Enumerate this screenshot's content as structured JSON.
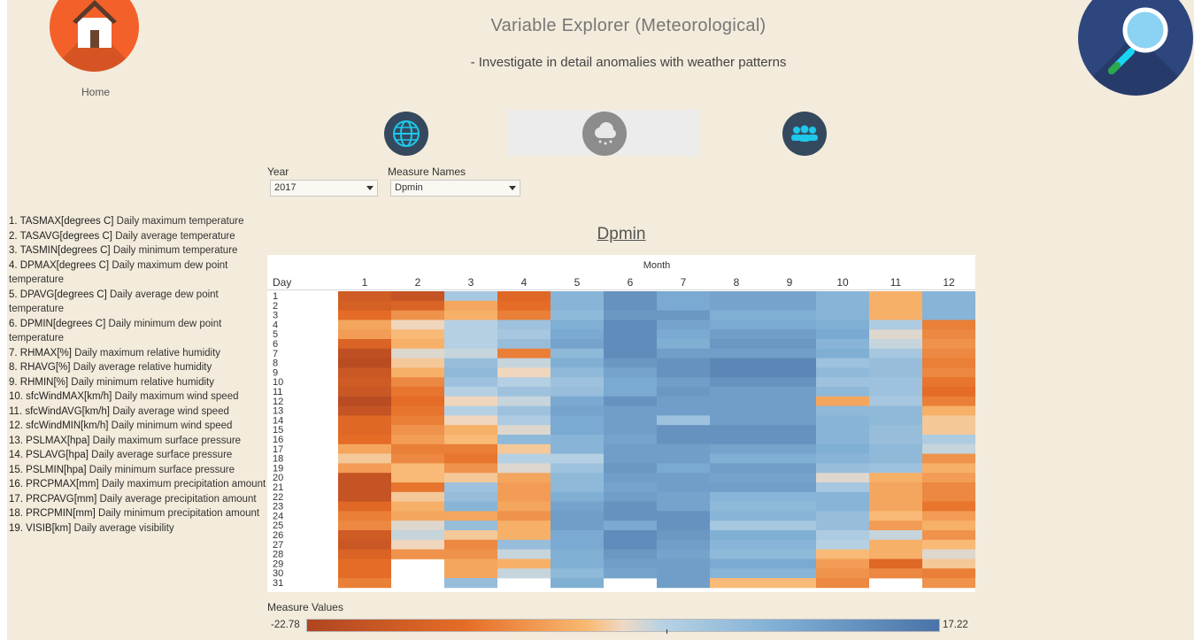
{
  "header": {
    "title": "Variable Explorer (Meteorological)",
    "subtitle": "- Investigate in detail anomalies with weather patterns",
    "home_label": "Home"
  },
  "icons": {
    "home": "home-icon",
    "search": "magnifier-icon",
    "nav": [
      "globe-icon",
      "rain-cloud-icon",
      "people-icon"
    ]
  },
  "colors": {
    "background": "#f3ebdb",
    "home_button": "#f4602a",
    "search_button": "#2e467e",
    "nav_dark": "#34495e",
    "nav_active": "#8c8c8c",
    "accent_cyan": "#19d6f0"
  },
  "filters": {
    "year": {
      "label": "Year",
      "value": "2017"
    },
    "measure": {
      "label": "Measure Names",
      "value": "Dpmin"
    }
  },
  "variables": [
    {
      "code": "1. TASMAX[degrees C]",
      "desc": "Daily maximum temperature"
    },
    {
      "code": "2. TASAVG[degrees C]",
      "desc": "Daily average temperature"
    },
    {
      "code": "3. TASMIN[degrees C]",
      "desc": "Daily minimum temperature"
    },
    {
      "code": "4. DPMAX[degrees C]",
      "desc": "Daily maximum dew point temperature"
    },
    {
      "code": "5. DPAVG[degrees C]",
      "desc": "Daily average dew point temperature"
    },
    {
      "code": "6. DPMIN[degrees C]",
      "desc": "Daily minimum dew point temperature"
    },
    {
      "code": "7. RHMAX[%]",
      "desc": "Daily maximum relative humidity"
    },
    {
      "code": "8. RHAVG[%]",
      "desc": "Daily average relative humidity"
    },
    {
      "code": "9. RHMIN[%]",
      "desc": "Daily minimum relative humidity"
    },
    {
      "code": "10. sfcWindMAX[km/h]",
      "desc": "Daily maximum wind speed"
    },
    {
      "code": "11. sfcWindAVG[km/h]",
      "desc": "Daily average wind speed"
    },
    {
      "code": "12. sfcWindMIN[km/h]",
      "desc": "Daily minimum wind speed"
    },
    {
      "code": "13. PSLMAX[hpa]",
      "desc": "Daily maximum surface pressure"
    },
    {
      "code": "14. PSLAVG[hpa]",
      "desc": "Daily average surface pressure"
    },
    {
      "code": "15. PSLMIN[hpa]",
      "desc": "Daily minimum surface pressure"
    },
    {
      "code": "16. PRCPMAX[mm]",
      "desc": "Daily maximum precipitation amount"
    },
    {
      "code": "17. PRCPAVG[mm]",
      "desc": "Daily average precipitation amount"
    },
    {
      "code": "18. PRCPMIN[mm]",
      "desc": "Daily minimum precipitation amount"
    },
    {
      "code": "19. VISIB[km]",
      "desc": "Daily average visibility"
    }
  ],
  "colorbar": {
    "label": "Measure Values",
    "min": "-22.78",
    "max": "17.22"
  },
  "chart_data": {
    "type": "heatmap",
    "title": "Dpmin",
    "x_header": "Month",
    "y_header": "Day",
    "categories": [
      "1",
      "2",
      "3",
      "4",
      "5",
      "6",
      "7",
      "8",
      "9",
      "10",
      "11",
      "12"
    ],
    "rows": [
      "1",
      "2",
      "3",
      "4",
      "5",
      "6",
      "7",
      "8",
      "9",
      "10",
      "11",
      "12",
      "13",
      "14",
      "15",
      "16",
      "17",
      "18",
      "19",
      "20",
      "21",
      "22",
      "23",
      "24",
      "25",
      "26",
      "27",
      "28",
      "29",
      "30",
      "31"
    ],
    "color_min": -22.78,
    "color_max": 17.22,
    "values": [
      [
        -17,
        -19,
        2,
        -14,
        6,
        12,
        8,
        9,
        9,
        6,
        -6,
        6
      ],
      [
        -16,
        -15,
        -7,
        -13,
        6,
        12,
        8,
        9,
        9,
        6,
        -6,
        6
      ],
      [
        -13,
        -9,
        -6,
        -11,
        5,
        11,
        11,
        7,
        7,
        6,
        -6,
        6
      ],
      [
        -7,
        -3,
        0,
        3,
        7,
        13,
        9,
        8,
        8,
        7,
        1,
        -11
      ],
      [
        -8,
        -5,
        0,
        2,
        8,
        13,
        8,
        10,
        10,
        8,
        -2,
        -10
      ],
      [
        -15,
        -6,
        0,
        4,
        9,
        13,
        7,
        11,
        11,
        6,
        -1,
        -9
      ],
      [
        -20,
        -2,
        -1,
        -11,
        5,
        13,
        10,
        10,
        10,
        7,
        2,
        -10
      ],
      [
        -21,
        -4,
        4,
        -1,
        7,
        11,
        12,
        14,
        14,
        3,
        4,
        -11
      ],
      [
        -18,
        -6,
        5,
        -3,
        5,
        9,
        12,
        14,
        14,
        5,
        4,
        -10
      ],
      [
        -17,
        -10,
        3,
        0,
        3,
        8,
        10,
        12,
        12,
        3,
        3,
        -12
      ],
      [
        -18,
        -12,
        0,
        3,
        4,
        8,
        11,
        10,
        10,
        5,
        3,
        -13
      ],
      [
        -21,
        -13,
        -3,
        -1,
        8,
        12,
        10,
        10,
        10,
        -7,
        2,
        -11
      ],
      [
        -19,
        -12,
        0,
        3,
        9,
        10,
        10,
        10,
        10,
        5,
        5,
        -6
      ],
      [
        -14,
        -11,
        -3,
        1,
        8,
        10,
        3,
        10,
        10,
        6,
        5,
        -4
      ],
      [
        -14,
        -9,
        -6,
        -2,
        8,
        10,
        12,
        12,
        12,
        6,
        4,
        -4
      ],
      [
        -13,
        -8,
        -5,
        5,
        6,
        9,
        12,
        12,
        12,
        6,
        4,
        1
      ],
      [
        -7,
        -11,
        -11,
        -4,
        6,
        10,
        10,
        9,
        9,
        7,
        5,
        -1
      ],
      [
        -4,
        -10,
        -12,
        0,
        0,
        10,
        10,
        7,
        7,
        6,
        5,
        -9
      ],
      [
        -8,
        -5,
        -9,
        -2,
        3,
        11,
        8,
        10,
        10,
        4,
        3,
        -6
      ],
      [
        -19,
        -5,
        -4,
        -7,
        5,
        10,
        10,
        9,
        9,
        -2,
        -6,
        -8
      ],
      [
        -19,
        -12,
        3,
        -8,
        5,
        9,
        10,
        10,
        10,
        2,
        -7,
        -10
      ],
      [
        -19,
        -4,
        4,
        -8,
        7,
        10,
        9,
        6,
        6,
        6,
        -7,
        -10
      ],
      [
        -14,
        -6,
        6,
        -7,
        9,
        12,
        9,
        5,
        5,
        6,
        -7,
        -12
      ],
      [
        -11,
        -7,
        -7,
        -9,
        10,
        12,
        12,
        6,
        6,
        4,
        -5,
        -8
      ],
      [
        -10,
        -2,
        4,
        -6,
        10,
        8,
        12,
        2,
        2,
        4,
        -8,
        -6
      ],
      [
        -17,
        -1,
        -4,
        -6,
        8,
        13,
        11,
        7,
        7,
        1,
        -1,
        -9
      ],
      [
        -18,
        -3,
        -10,
        4,
        8,
        13,
        10,
        6,
        6,
        0,
        -6,
        -5
      ],
      [
        -15,
        -9,
        -9,
        -1,
        7,
        11,
        9,
        5,
        5,
        -5,
        -6,
        -2
      ],
      [
        -13,
        null,
        -7,
        -6,
        7,
        10,
        10,
        8,
        8,
        -8,
        -14,
        -4
      ],
      [
        -13,
        null,
        -7,
        -1,
        5,
        9,
        10,
        6,
        6,
        -9,
        -10,
        -11
      ],
      [
        -11,
        null,
        4,
        null,
        7,
        null,
        10,
        -5,
        -5,
        -10,
        null,
        -9
      ]
    ]
  }
}
